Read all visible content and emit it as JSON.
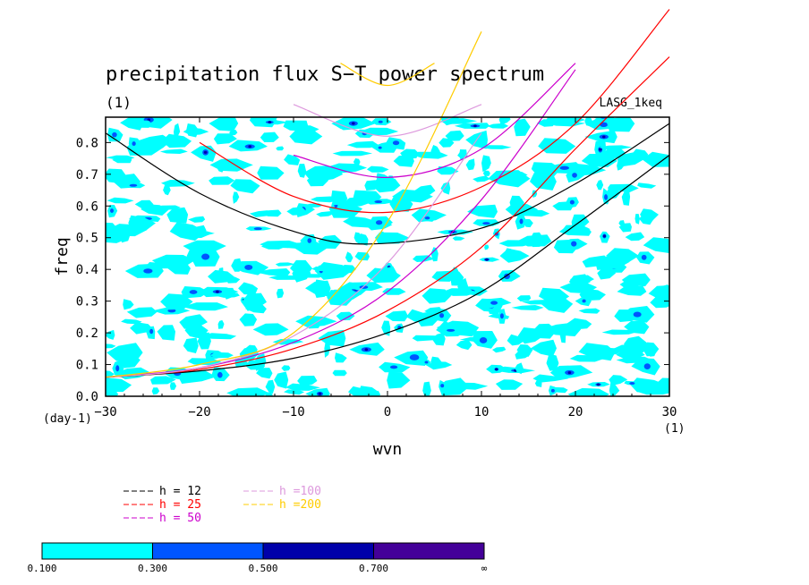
{
  "chart_data": {
    "type": "line",
    "title": "precipitation flux S−T power spectrum",
    "subtitle": "(1)",
    "model_label": "LASG_1keq",
    "xlabel": "wvn",
    "ylabel": "freq",
    "x_unit": "(1)",
    "y_unit": "(day-1)",
    "xlim": [
      -30,
      30
    ],
    "ylim": [
      0,
      0.88
    ],
    "x_ticks": [
      -30,
      -20,
      -10,
      0,
      10,
      20,
      30
    ],
    "x_tick_labels": [
      "−30",
      "−20",
      "−10",
      "0",
      "10",
      "20",
      "30"
    ],
    "y_ticks": [
      0.0,
      0.1,
      0.2,
      0.3,
      0.4,
      0.5,
      0.6,
      0.7,
      0.8
    ],
    "y_tick_labels": [
      "0.0",
      "0.1",
      "0.2",
      "0.3",
      "0.4",
      "0.5",
      "0.6",
      "0.7",
      "0.8"
    ],
    "dispersion_curves": [
      {
        "label": "h = 12",
        "color": "#000000",
        "kelvin": [
          [
            -30,
            0.06
          ],
          [
            -20,
            0.08
          ],
          [
            -10,
            0.12
          ],
          [
            0,
            0.2
          ],
          [
            10,
            0.33
          ],
          [
            20,
            0.54
          ],
          [
            30,
            0.76
          ]
        ],
        "igw": [
          [
            -30,
            0.83
          ],
          [
            -20,
            0.64
          ],
          [
            -10,
            0.52
          ],
          [
            -2,
            0.48
          ],
          [
            10,
            0.53
          ],
          [
            20,
            0.67
          ],
          [
            30,
            0.86
          ]
        ]
      },
      {
        "label": "h = 25",
        "color": "#ff0000",
        "kelvin": [
          [
            -30,
            0.06
          ],
          [
            -20,
            0.085
          ],
          [
            -10,
            0.15
          ],
          [
            0,
            0.27
          ],
          [
            10,
            0.47
          ],
          [
            20,
            0.78
          ],
          [
            30,
            1.07
          ]
        ],
        "igw": [
          [
            -20,
            0.8
          ],
          [
            -10,
            0.63
          ],
          [
            0,
            0.58
          ],
          [
            10,
            0.66
          ],
          [
            20,
            0.86
          ],
          [
            30,
            1.22
          ]
        ]
      },
      {
        "label": "h = 50",
        "color": "#cc00cc",
        "kelvin": [
          [
            -30,
            0.06
          ],
          [
            -20,
            0.09
          ],
          [
            -10,
            0.17
          ],
          [
            0,
            0.33
          ],
          [
            10,
            0.62
          ],
          [
            20,
            1.03
          ]
        ],
        "igw": [
          [
            -10,
            0.76
          ],
          [
            0,
            0.69
          ],
          [
            10,
            0.78
          ],
          [
            20,
            1.05
          ]
        ]
      },
      {
        "label": "h =100",
        "color": "#dd99dd",
        "kelvin": [
          [
            -30,
            0.06
          ],
          [
            -20,
            0.09
          ],
          [
            -10,
            0.19
          ],
          [
            0,
            0.42
          ],
          [
            10,
            0.83
          ]
        ],
        "igw": [
          [
            -10,
            0.92
          ],
          [
            0,
            0.82
          ],
          [
            10,
            0.92
          ]
        ]
      },
      {
        "label": "h =200",
        "color": "#ffcc00",
        "kelvin": [
          [
            -30,
            0.06
          ],
          [
            -20,
            0.1
          ],
          [
            -10,
            0.2
          ],
          [
            0,
            0.55
          ],
          [
            10,
            1.15
          ]
        ],
        "igw": [
          [
            -5,
            1.05
          ],
          [
            0,
            0.98
          ],
          [
            5,
            1.05
          ]
        ]
      }
    ],
    "shading": {
      "levels": [
        "0.100",
        "0.300",
        "0.500",
        "0.700",
        "∞"
      ],
      "colors": [
        "#00ffff",
        "#0055ff",
        "#0000aa",
        "#440099"
      ]
    }
  }
}
